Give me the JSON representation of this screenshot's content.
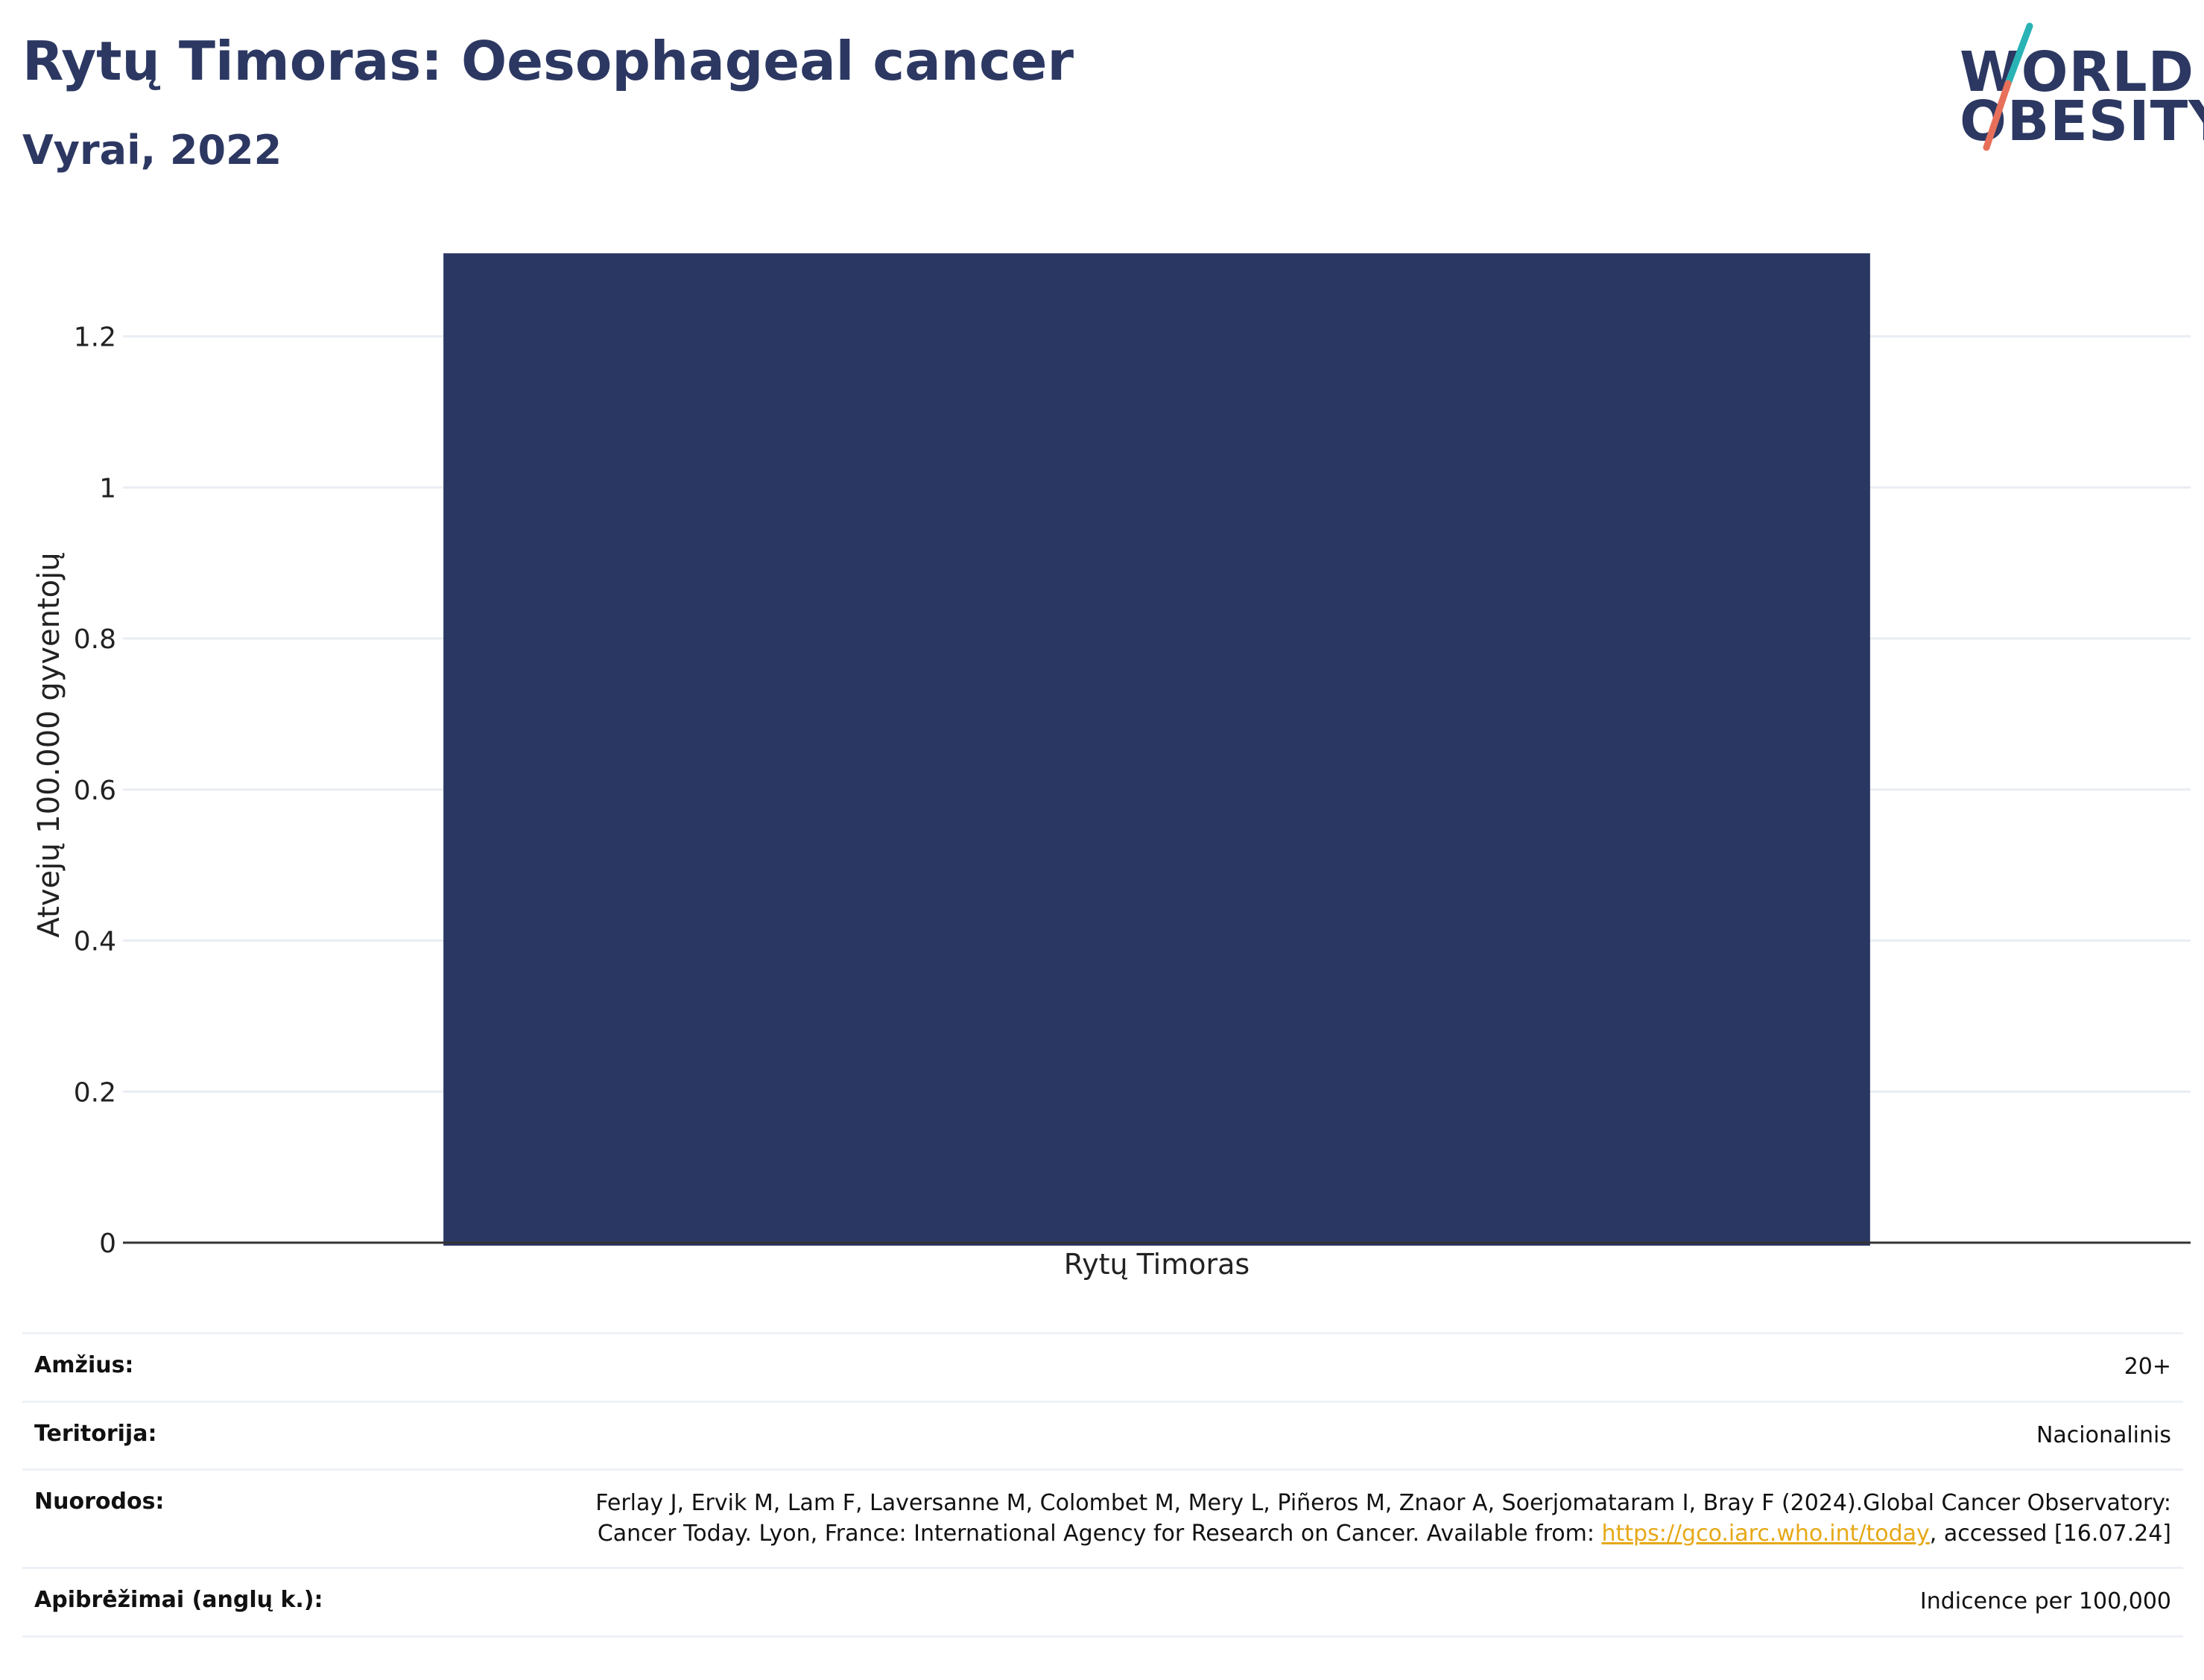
{
  "header": {
    "title": "Rytų Timoras: Oesophageal cancer",
    "subtitle": "Vyrai, 2022"
  },
  "logo": {
    "line1": "WORLD",
    "line2": "OBESITY",
    "colors": {
      "text": "#2c3862",
      "slash_top": "#2ab3b5",
      "slash_bottom": "#e8705a"
    }
  },
  "chart_data": {
    "type": "bar",
    "categories": [
      "Rytų Timoras"
    ],
    "values": [
      1.31
    ],
    "ylabel": "Atvejų 100.000 gyventojų",
    "xlabel": "",
    "ylim": [
      0,
      1.31
    ],
    "yticks": [
      0,
      0.2,
      0.4,
      0.6,
      0.8,
      1,
      1.2
    ],
    "ytick_labels": [
      "0",
      "0.2",
      "0.4",
      "0.6",
      "0.8",
      "1",
      "1.2"
    ],
    "grid": true,
    "legend": "none",
    "bar_color": "#2b3763"
  },
  "info": {
    "rows": [
      {
        "label": "Amžius:",
        "value": "20+"
      },
      {
        "label": "Teritorija:",
        "value": "Nacionalinis"
      },
      {
        "label": "Nuorodos:",
        "value_before": "Ferlay J, Ervik M, Lam F, Laversanne M, Colombet M, Mery L, Piñeros M, Znaor A, Soerjomataram I, Bray F (2024).Global Cancer Observatory: Cancer Today. Lyon, France: International Agency for Research on Cancer. Available from: ",
        "link": "https://gco.iarc.who.int/today",
        "value_after": ", accessed [16.07.24]"
      },
      {
        "label": "Apibrėžimai (anglų k.):",
        "value": "Indicence per 100,000"
      }
    ]
  }
}
